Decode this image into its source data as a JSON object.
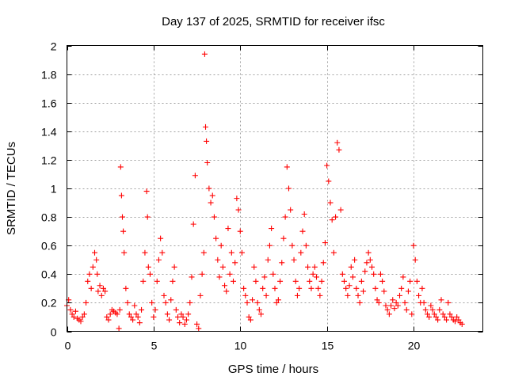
{
  "chart_data": {
    "type": "scatter",
    "title": "Day 137 of 2025, SRMTID for receiver ifsc",
    "xlabel": "GPS time / hours",
    "ylabel": "SRMTID / TECUs",
    "xlim": [
      0,
      24
    ],
    "ylim": [
      0,
      2
    ],
    "xticks": [
      0,
      5,
      10,
      15,
      20
    ],
    "xtick_labels": [
      "0",
      "5",
      "10",
      "15",
      "20"
    ],
    "yticks": [
      0,
      0.2,
      0.4,
      0.6,
      0.8,
      1,
      1.2,
      1.4,
      1.6,
      1.8,
      2
    ],
    "ytick_labels": [
      "0",
      "0.2",
      "0.4",
      "0.6",
      "0.8",
      "1",
      "1.2",
      "1.4",
      "1.6",
      "1.8",
      "2"
    ],
    "grid": true,
    "marker": "plus",
    "series": [
      {
        "name": "SRMTID",
        "color": "#ff0000",
        "x": [
          0.0,
          0.1,
          0.2,
          0.3,
          0.4,
          0.5,
          0.6,
          0.7,
          0.8,
          0.9,
          1.0,
          1.1,
          1.2,
          1.3,
          1.4,
          1.5,
          1.6,
          1.7,
          1.75,
          1.8,
          1.9,
          2.0,
          2.1,
          2.2,
          2.3,
          2.4,
          2.5,
          2.6,
          2.7,
          2.8,
          2.9,
          3.0,
          3.05,
          3.1,
          3.15,
          3.2,
          3.25,
          3.3,
          3.4,
          3.5,
          3.6,
          3.7,
          3.8,
          3.9,
          4.0,
          4.1,
          4.2,
          4.3,
          4.4,
          4.5,
          4.6,
          4.65,
          4.7,
          4.8,
          4.9,
          5.0,
          5.1,
          5.2,
          5.3,
          5.4,
          5.5,
          5.6,
          5.7,
          5.8,
          5.9,
          6.0,
          6.1,
          6.2,
          6.3,
          6.4,
          6.5,
          6.6,
          6.7,
          6.8,
          6.9,
          7.0,
          7.1,
          7.2,
          7.3,
          7.4,
          7.5,
          7.6,
          7.7,
          7.8,
          7.9,
          7.95,
          8.0,
          8.05,
          8.1,
          8.2,
          8.3,
          8.4,
          8.5,
          8.6,
          8.7,
          8.8,
          8.9,
          9.0,
          9.1,
          9.2,
          9.3,
          9.4,
          9.5,
          9.6,
          9.7,
          9.8,
          9.9,
          10.0,
          10.1,
          10.2,
          10.3,
          10.4,
          10.5,
          10.6,
          10.7,
          10.8,
          10.9,
          11.0,
          11.1,
          11.2,
          11.3,
          11.4,
          11.5,
          11.6,
          11.7,
          11.8,
          11.9,
          12.0,
          12.1,
          12.2,
          12.3,
          12.4,
          12.5,
          12.6,
          12.7,
          12.8,
          12.9,
          13.0,
          13.1,
          13.2,
          13.3,
          13.4,
          13.5,
          13.6,
          13.7,
          13.8,
          13.9,
          14.0,
          14.1,
          14.2,
          14.3,
          14.4,
          14.5,
          14.6,
          14.7,
          14.8,
          14.9,
          15.0,
          15.1,
          15.2,
          15.3,
          15.4,
          15.5,
          15.6,
          15.7,
          15.8,
          15.9,
          16.0,
          16.1,
          16.2,
          16.3,
          16.4,
          16.5,
          16.6,
          16.7,
          16.8,
          16.9,
          17.0,
          17.1,
          17.2,
          17.3,
          17.4,
          17.5,
          17.6,
          17.7,
          17.8,
          17.9,
          18.0,
          18.1,
          18.2,
          18.3,
          18.4,
          18.5,
          18.6,
          18.7,
          18.8,
          18.9,
          19.0,
          19.1,
          19.2,
          19.3,
          19.4,
          19.5,
          19.6,
          19.7,
          19.8,
          19.9,
          20.0,
          20.1,
          20.2,
          20.3,
          20.4,
          20.5,
          20.6,
          20.7,
          20.8,
          20.9,
          21.0,
          21.1,
          21.2,
          21.3,
          21.4,
          21.5,
          21.6,
          21.7,
          21.8,
          21.9,
          22.0,
          22.1,
          22.2,
          22.3,
          22.4,
          22.5,
          22.6,
          22.7,
          22.8
        ],
        "y": [
          0.18,
          0.22,
          0.15,
          0.12,
          0.1,
          0.14,
          0.09,
          0.08,
          0.07,
          0.1,
          0.12,
          0.2,
          0.35,
          0.4,
          0.3,
          0.45,
          0.55,
          0.5,
          0.4,
          0.28,
          0.32,
          0.25,
          0.3,
          0.28,
          0.1,
          0.08,
          0.12,
          0.15,
          0.14,
          0.13,
          0.12,
          0.02,
          0.15,
          1.15,
          0.95,
          0.8,
          0.7,
          0.55,
          0.3,
          0.2,
          0.12,
          0.1,
          0.08,
          0.18,
          0.12,
          0.1,
          0.06,
          0.15,
          0.35,
          0.55,
          0.98,
          0.8,
          0.45,
          0.4,
          0.2,
          0.1,
          0.15,
          0.35,
          0.5,
          0.65,
          0.55,
          0.25,
          0.2,
          0.12,
          0.08,
          0.22,
          0.35,
          0.45,
          0.15,
          0.1,
          0.06,
          0.12,
          0.1,
          0.05,
          0.08,
          0.12,
          0.2,
          0.38,
          0.75,
          1.09,
          0.05,
          0.02,
          0.25,
          0.4,
          0.55,
          1.94,
          1.43,
          1.33,
          1.18,
          1.0,
          0.9,
          0.95,
          0.8,
          0.65,
          0.5,
          0.38,
          0.6,
          0.45,
          0.32,
          0.28,
          0.72,
          0.4,
          0.55,
          0.35,
          0.48,
          0.93,
          0.85,
          0.7,
          0.55,
          0.3,
          0.25,
          0.2,
          0.1,
          0.08,
          0.22,
          0.45,
          0.35,
          0.2,
          0.15,
          0.12,
          0.3,
          0.38,
          0.25,
          0.5,
          0.6,
          0.72,
          0.4,
          0.3,
          0.2,
          0.22,
          0.35,
          0.48,
          0.65,
          0.8,
          1.15,
          1.0,
          0.85,
          0.6,
          0.5,
          0.35,
          0.25,
          0.3,
          0.55,
          0.7,
          0.82,
          0.6,
          0.45,
          0.35,
          0.3,
          0.4,
          0.45,
          0.38,
          0.3,
          0.25,
          0.35,
          0.48,
          0.62,
          1.16,
          1.05,
          0.9,
          0.78,
          0.55,
          0.8,
          1.32,
          1.27,
          0.85,
          0.4,
          0.35,
          0.3,
          0.25,
          0.32,
          0.45,
          0.38,
          0.5,
          0.3,
          0.25,
          0.2,
          0.35,
          0.28,
          0.42,
          0.48,
          0.55,
          0.5,
          0.45,
          0.4,
          0.3,
          0.22,
          0.2,
          0.4,
          0.35,
          0.28,
          0.18,
          0.15,
          0.12,
          0.18,
          0.22,
          0.16,
          0.2,
          0.18,
          0.25,
          0.3,
          0.38,
          0.2,
          0.15,
          0.28,
          0.35,
          0.12,
          0.6,
          0.5,
          0.35,
          0.25,
          0.2,
          0.3,
          0.2,
          0.15,
          0.12,
          0.1,
          0.18,
          0.15,
          0.12,
          0.1,
          0.08,
          0.15,
          0.22,
          0.12,
          0.1,
          0.08,
          0.2,
          0.12,
          0.1,
          0.08,
          0.07,
          0.1,
          0.08,
          0.06,
          0.05
        ]
      }
    ]
  }
}
